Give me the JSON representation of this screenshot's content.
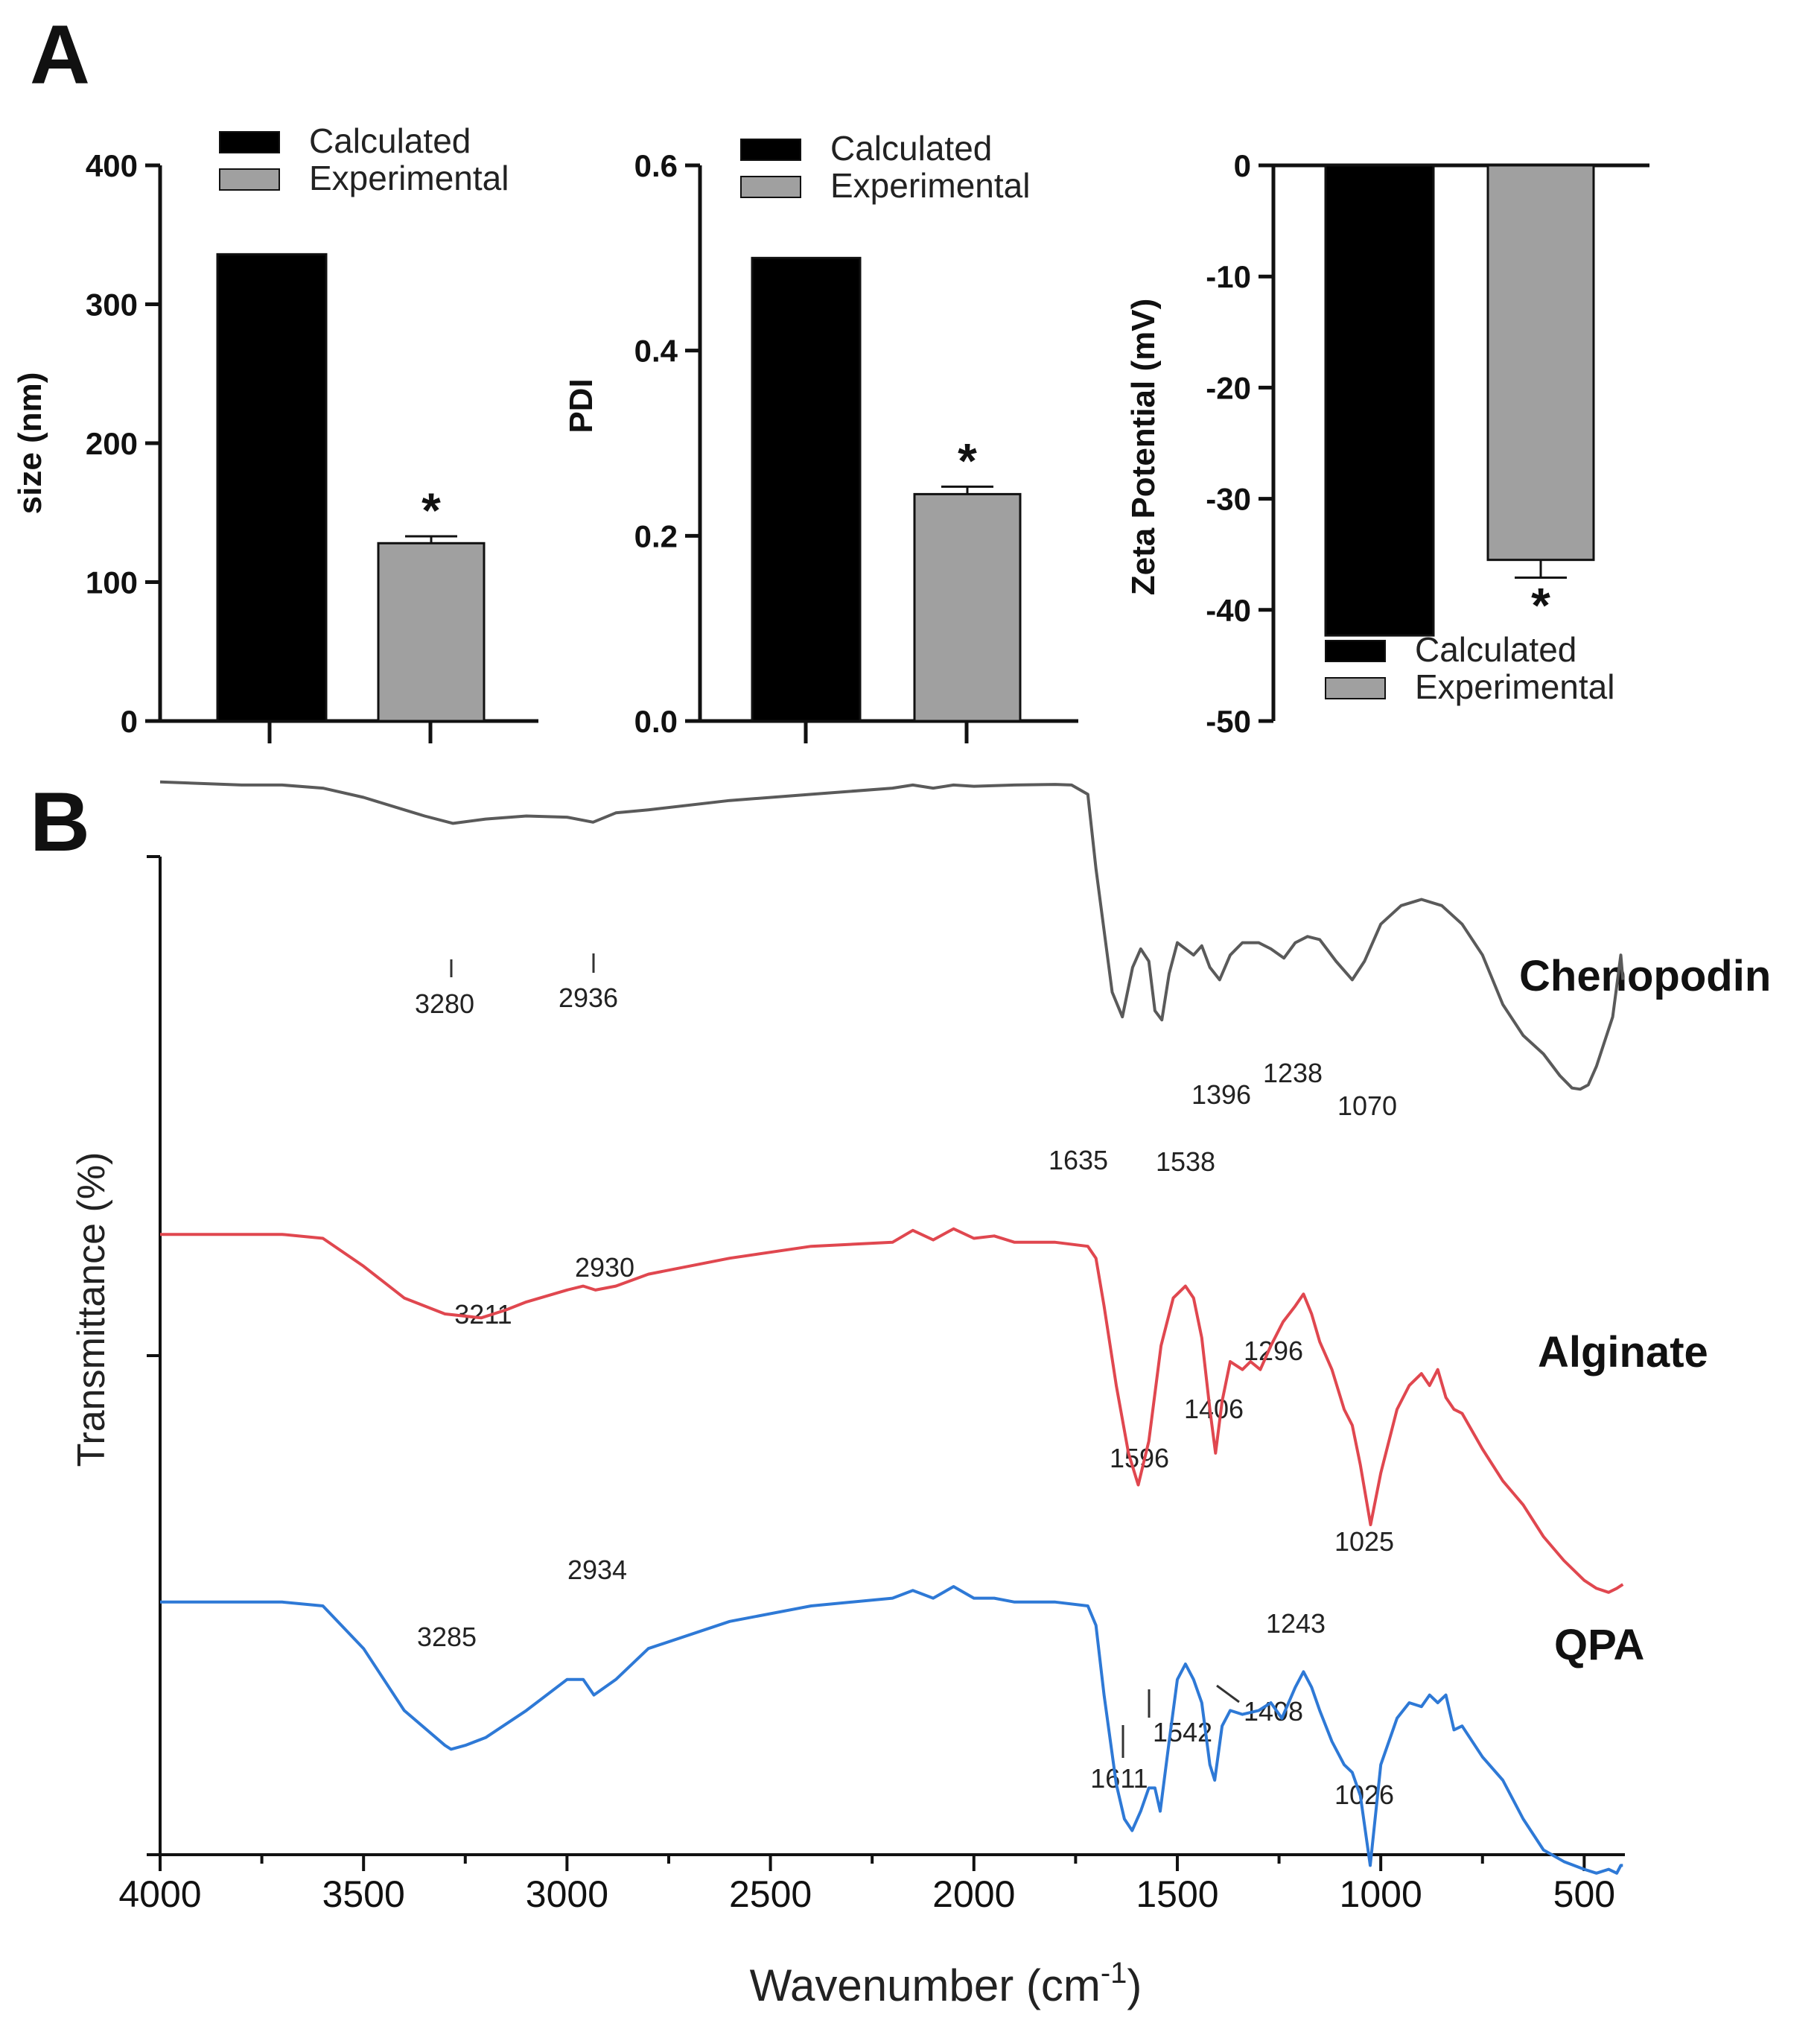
{
  "panels": {
    "a_label": "A",
    "b_label": "B"
  },
  "colors": {
    "calculated": "#000000",
    "experimental": "#a0a0a0",
    "chenopodin": "#5a5a5a",
    "alginate": "#e0474f",
    "qpa": "#2e79d6"
  },
  "chart_data": [
    {
      "type": "bar",
      "panel": "A",
      "id": "size",
      "title": "",
      "xlabel": "",
      "ylabel": "size (nm)",
      "ylim": [
        0,
        400
      ],
      "yticks": [
        "0",
        "100",
        "200",
        "300",
        "400"
      ],
      "yticks_values": [
        0,
        100,
        200,
        300,
        400
      ],
      "categories": [
        "Calculated",
        "Experimental"
      ],
      "values": [
        336,
        128
      ],
      "errors": [
        0,
        5
      ],
      "significance": [
        "",
        "*"
      ],
      "legend": [
        "Calculated",
        "Experimental"
      ],
      "legend_position": "top-right"
    },
    {
      "type": "bar",
      "panel": "A",
      "id": "pdi",
      "title": "",
      "xlabel": "",
      "ylabel": "PDI",
      "ylim": [
        0,
        0.6
      ],
      "yticks": [
        "0.0",
        "0.2",
        "0.4",
        "0.6"
      ],
      "yticks_values": [
        0,
        0.2,
        0.4,
        0.6
      ],
      "categories": [
        "Calculated",
        "Experimental"
      ],
      "values": [
        0.5,
        0.245
      ],
      "errors": [
        0,
        0.008
      ],
      "significance": [
        "",
        "*"
      ],
      "legend": [
        "Calculated",
        "Experimental"
      ],
      "legend_position": "top-right"
    },
    {
      "type": "bar",
      "panel": "A",
      "id": "zeta",
      "title": "",
      "xlabel": "",
      "ylabel": "Zeta Potential (mV)",
      "ylim": [
        -50,
        0
      ],
      "yticks": [
        "0",
        "-10",
        "-20",
        "-30",
        "-40",
        "-50"
      ],
      "yticks_values": [
        0,
        -10,
        -20,
        -30,
        -40,
        -50
      ],
      "categories": [
        "Calculated",
        "Experimental"
      ],
      "values": [
        -42.3,
        -35.5
      ],
      "errors": [
        0,
        1.6
      ],
      "significance": [
        "",
        "*"
      ],
      "legend": [
        "Calculated",
        "Experimental"
      ],
      "legend_position": "bottom-right"
    },
    {
      "type": "line",
      "panel": "B",
      "id": "ftir",
      "title": "",
      "xlabel": "Wavenumber (cm",
      "xlabel_sup": "-1",
      "xlabel_close": ")",
      "ylabel": "Transmittance (%)",
      "xlim": [
        4000,
        400
      ],
      "xticks": [
        "4000",
        "3500",
        "3000",
        "2500",
        "2000",
        "1500",
        "1000",
        "500"
      ],
      "xticks_values": [
        4000,
        3500,
        3000,
        2500,
        2000,
        1500,
        1000,
        500
      ],
      "ylim": [
        0,
        100
      ],
      "series": [
        {
          "name": "Chenopodin",
          "color_key": "chenopodin",
          "x": [
            4000,
            3800,
            3700,
            3600,
            3500,
            3400,
            3350,
            3280,
            3200,
            3100,
            3000,
            2936,
            2880,
            2800,
            2600,
            2400,
            2200,
            2150,
            2100,
            2050,
            2000,
            1900,
            1800,
            1760,
            1720,
            1700,
            1680,
            1660,
            1635,
            1610,
            1590,
            1570,
            1555,
            1538,
            1520,
            1500,
            1480,
            1460,
            1440,
            1420,
            1396,
            1370,
            1340,
            1300,
            1270,
            1238,
            1210,
            1180,
            1150,
            1110,
            1070,
            1040,
            1000,
            950,
            900,
            850,
            800,
            750,
            700,
            650,
            600,
            560,
            530,
            510,
            490,
            470,
            450,
            430,
            410,
            405
          ],
          "y": [
            94,
            93.5,
            93.5,
            93,
            91.5,
            89.5,
            88.5,
            87.3,
            88,
            88.5,
            88.3,
            87.5,
            89,
            89.5,
            91,
            92,
            93,
            93.5,
            93,
            93.5,
            93.3,
            93.5,
            93.6,
            93.5,
            92,
            80,
            70,
            60,
            56,
            64,
            67,
            65,
            57,
            55.5,
            63,
            68,
            67,
            66,
            67.5,
            64,
            62,
            66,
            68,
            68,
            67,
            65.5,
            68,
            69,
            68.5,
            65,
            62,
            65,
            71,
            74,
            75,
            74,
            71,
            66,
            58,
            53,
            50,
            46.5,
            44.5,
            44.3,
            45,
            48,
            52,
            56,
            66,
            62
          ],
          "peaks": [
            {
              "x": 3280,
              "label": "3280"
            },
            {
              "x": 2936,
              "label": "2936"
            },
            {
              "x": 1635,
              "label": "1635"
            },
            {
              "x": 1538,
              "label": "1538"
            },
            {
              "x": 1396,
              "label": "1396"
            },
            {
              "x": 1238,
              "label": "1238"
            },
            {
              "x": 1070,
              "label": "1070"
            }
          ]
        },
        {
          "name": "Alginate",
          "color_key": "alginate",
          "x": [
            4000,
            3800,
            3700,
            3600,
            3500,
            3400,
            3300,
            3211,
            3150,
            3100,
            3000,
            2960,
            2930,
            2880,
            2800,
            2600,
            2400,
            2200,
            2150,
            2100,
            2050,
            2000,
            1950,
            1900,
            1800,
            1720,
            1700,
            1680,
            1650,
            1620,
            1596,
            1570,
            1540,
            1510,
            1480,
            1460,
            1440,
            1420,
            1406,
            1390,
            1370,
            1340,
            1320,
            1296,
            1270,
            1240,
            1210,
            1190,
            1170,
            1150,
            1120,
            1090,
            1070,
            1050,
            1025,
            1000,
            960,
            930,
            900,
            880,
            860,
            840,
            820,
            800,
            750,
            700,
            650,
            600,
            550,
            500,
            470,
            440,
            420,
            405
          ],
          "y": [
            63,
            63,
            63,
            62.5,
            59,
            55,
            53,
            52.5,
            53.5,
            54.5,
            56,
            56.5,
            56,
            56.5,
            58,
            60,
            61.5,
            62,
            63.5,
            62.3,
            63.7,
            62.5,
            62.8,
            62,
            62,
            61.5,
            60,
            54,
            44,
            35.5,
            31.5,
            37,
            49,
            55,
            56.5,
            55,
            50,
            41,
            35.5,
            42,
            47,
            46,
            47,
            46,
            49,
            52,
            54,
            55.5,
            53,
            49.5,
            46,
            41,
            39,
            34,
            26.5,
            33,
            41,
            44,
            45.5,
            44,
            46,
            42.5,
            41,
            40.5,
            36,
            32,
            29,
            25,
            22,
            19.5,
            18.5,
            18,
            18.5,
            19
          ]
        },
        {
          "name": "QPA",
          "color_key": "qpa",
          "x": [
            4000,
            3800,
            3700,
            3600,
            3500,
            3400,
            3300,
            3285,
            3250,
            3200,
            3100,
            3000,
            2960,
            2934,
            2880,
            2800,
            2600,
            2400,
            2200,
            2150,
            2100,
            2050,
            2000,
            1950,
            1900,
            1800,
            1720,
            1700,
            1680,
            1650,
            1630,
            1611,
            1590,
            1570,
            1555,
            1542,
            1520,
            1500,
            1480,
            1460,
            1440,
            1420,
            1408,
            1390,
            1370,
            1340,
            1300,
            1270,
            1243,
            1210,
            1190,
            1170,
            1150,
            1120,
            1090,
            1070,
            1050,
            1026,
            1000,
            960,
            930,
            900,
            880,
            860,
            840,
            820,
            800,
            750,
            700,
            650,
            600,
            550,
            500,
            470,
            440,
            420,
            410,
            405
          ],
          "y": [
            48,
            48,
            48,
            47.5,
            42,
            34,
            29.5,
            29,
            29.5,
            30.5,
            34,
            38,
            38,
            36,
            38,
            42,
            45.5,
            47.5,
            48.5,
            49.5,
            48.5,
            50,
            48.5,
            48.5,
            48,
            48,
            47.5,
            45,
            36,
            24.5,
            20,
            18.5,
            21,
            24,
            24,
            21,
            30,
            38,
            40,
            38,
            35,
            27,
            25,
            32,
            34,
            33.5,
            34,
            35,
            33,
            37,
            39,
            37,
            34,
            30,
            27,
            26,
            23,
            14,
            27,
            33,
            35,
            34.5,
            36,
            35,
            36,
            31.5,
            32,
            28,
            25,
            20,
            16,
            14.5,
            13.5,
            13,
            13.5,
            13,
            14,
            14
          ]
        }
      ],
      "peak_labels": [
        {
          "series": "Chenopodin",
          "label": "3280"
        },
        {
          "series": "Chenopodin",
          "label": "2936"
        },
        {
          "series": "Chenopodin",
          "label": "1635"
        },
        {
          "series": "Chenopodin",
          "label": "1538"
        },
        {
          "series": "Chenopodin",
          "label": "1396"
        },
        {
          "series": "Chenopodin",
          "label": "1238"
        },
        {
          "series": "Chenopodin",
          "label": "1070"
        },
        {
          "series": "Alginate",
          "label": "3211"
        },
        {
          "series": "Alginate",
          "label": "2930"
        },
        {
          "series": "Alginate",
          "label": "1596"
        },
        {
          "series": "Alginate",
          "label": "1406"
        },
        {
          "series": "Alginate",
          "label": "1296"
        },
        {
          "series": "Alginate",
          "label": "1025"
        },
        {
          "series": "QPA",
          "label": "3285"
        },
        {
          "series": "QPA",
          "label": "2934"
        },
        {
          "series": "QPA",
          "label": "1611"
        },
        {
          "series": "QPA",
          "label": "1542"
        },
        {
          "series": "QPA",
          "label": "1408"
        },
        {
          "series": "QPA",
          "label": "1243"
        },
        {
          "series": "QPA",
          "label": "1026"
        }
      ]
    }
  ]
}
